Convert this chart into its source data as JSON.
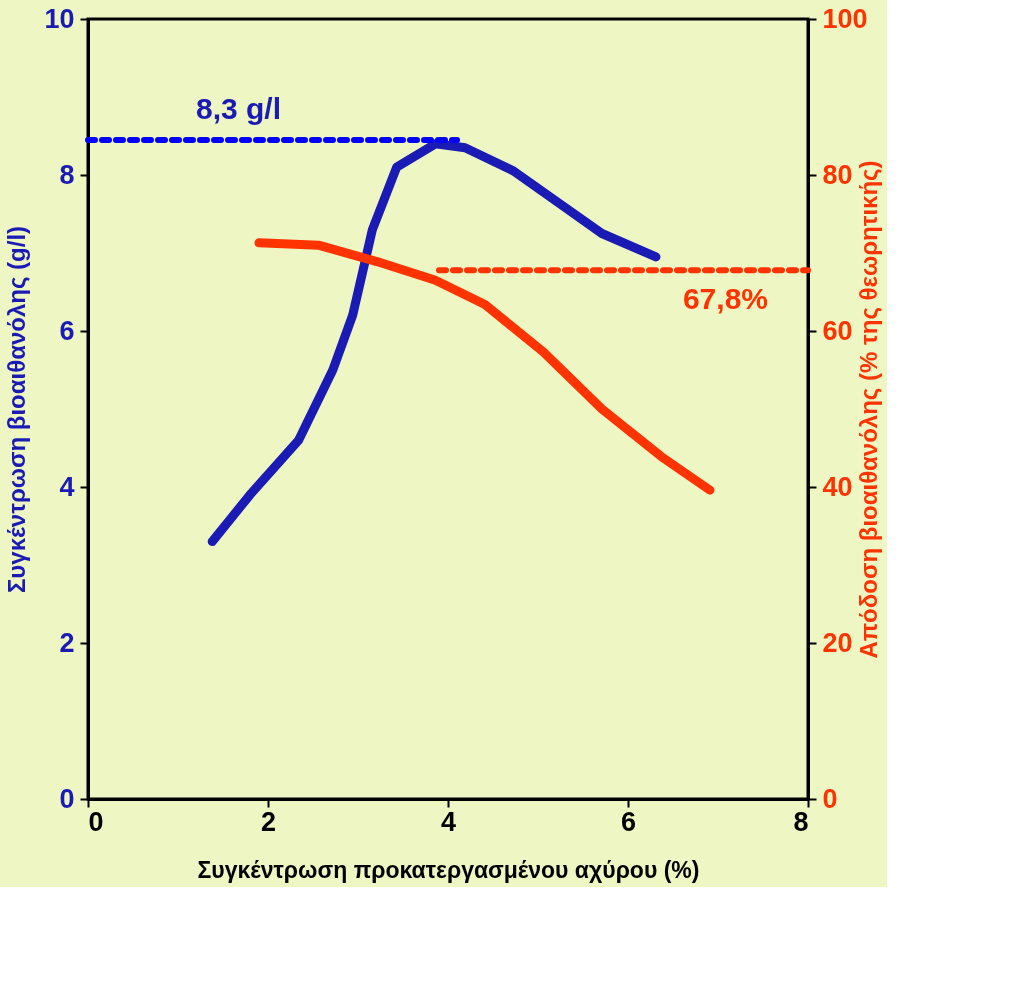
{
  "chart_data": {
    "type": "line",
    "xlabel": "Συγκέντρωση προκατεργασμένου αχύρου  (%)",
    "ylabel": "Συγκέντρωση βιοαιθανόλης  (g/l)",
    "y2label": "Απόδοση βιοαιθανόλης (% της θεωρητικής)",
    "xlim": [
      0,
      8
    ],
    "xticks": [
      0,
      2,
      4,
      6,
      8
    ],
    "ylim": [
      0,
      10
    ],
    "yticks": [
      0,
      2,
      4,
      6,
      8,
      10
    ],
    "y2lim": [
      0,
      100
    ],
    "y2ticks": [
      0,
      20,
      40,
      60,
      80,
      100
    ],
    "grid": false,
    "series": [
      {
        "type": "line",
        "color": "#1a1ab4",
        "line_style": "solid",
        "x": [
          1.38,
          1.8,
          2.34,
          2.72,
          2.94,
          3.16,
          3.43,
          3.86,
          4.19,
          4.73,
          5.28,
          5.71,
          6.31
        ],
        "values": [
          3.3,
          3.9,
          4.6,
          5.5,
          6.2,
          7.3,
          8.1,
          8.4,
          8.35,
          8.05,
          7.6,
          7.25,
          6.95
        ]
      },
      {
        "type": "line",
        "color": "#ff3300",
        "line_style": "solid",
        "axis": "y2",
        "x": [
          1.9,
          2.56,
          3.21,
          3.86,
          4.41,
          5.06,
          5.71,
          6.37,
          6.91
        ],
        "values": [
          71.3,
          71,
          68.9,
          66.5,
          63.4,
          57.3,
          50,
          43.9,
          39.6
        ]
      },
      {
        "type": "line",
        "color": "#0000ff",
        "line_style": "dotted",
        "x": [
          0,
          4.1
        ],
        "values": [
          8.45,
          8.45
        ]
      },
      {
        "type": "line",
        "color": "#ff3300",
        "line_style": "dotted",
        "axis": "y2",
        "x": [
          3.9,
          8
        ],
        "values": [
          67.8,
          67.8
        ]
      }
    ],
    "annotations": [
      {
        "text": "8,3 g/l",
        "x": 1.2,
        "y": 8.45
      },
      {
        "text": "67,8%",
        "x": 8,
        "y": 6.78
      }
    ]
  }
}
